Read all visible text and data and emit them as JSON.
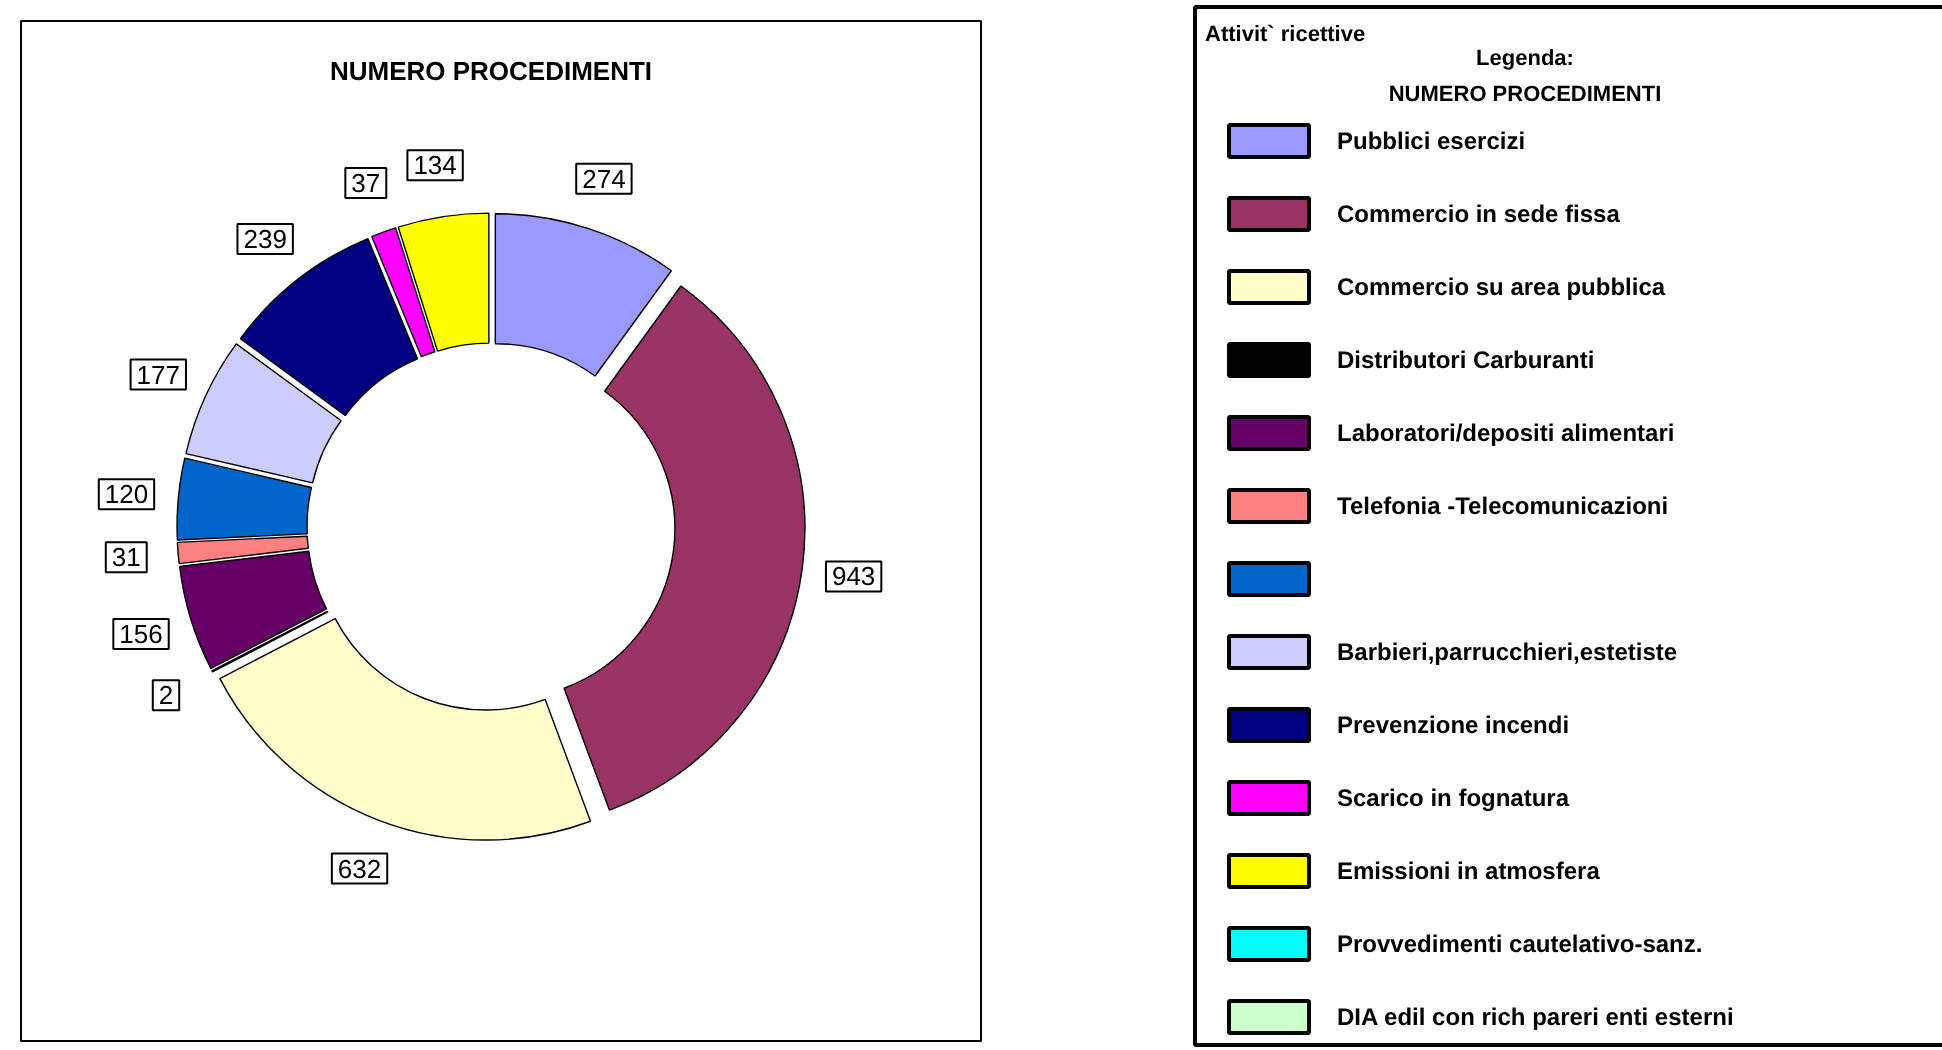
{
  "chart_data": {
    "type": "donut",
    "title": "NUMERO PROCEDIMENTI",
    "legend_title": "Legenda:\nNUMERO PROCEDIMENTI",
    "legend": "right",
    "data_labels": true,
    "categories": [
      "Pubblici esercizi",
      "Commercio in sede fissa",
      "Commercio su area pubblica",
      "Distributori Carburanti",
      "Laboratori/depositi alimentari",
      "Telefonia -Telecomunicazioni",
      null,
      "Barbieri,parrucchieri,estetiste",
      "Prevenzione incendi",
      "Scarico in fognatura",
      "Emissioni in atmosfera",
      "Provvedimenti cautelativo-sanz.",
      "DIA edil con rich pareri enti esterni"
    ],
    "values": [
      274,
      943,
      632,
      2,
      156,
      31,
      120,
      177,
      239,
      37,
      134,
      0,
      0
    ],
    "colors": [
      "#9999ff",
      "#993366",
      "#ffffcc",
      "#000000",
      "#660066",
      "#ff8080",
      "#0066cc",
      "#ccccff",
      "#000080",
      "#ff00ff",
      "#ffff00",
      "#00ffff",
      "#ccffcc"
    ],
    "annotations": [
      "Attivit` ricettive"
    ]
  }
}
